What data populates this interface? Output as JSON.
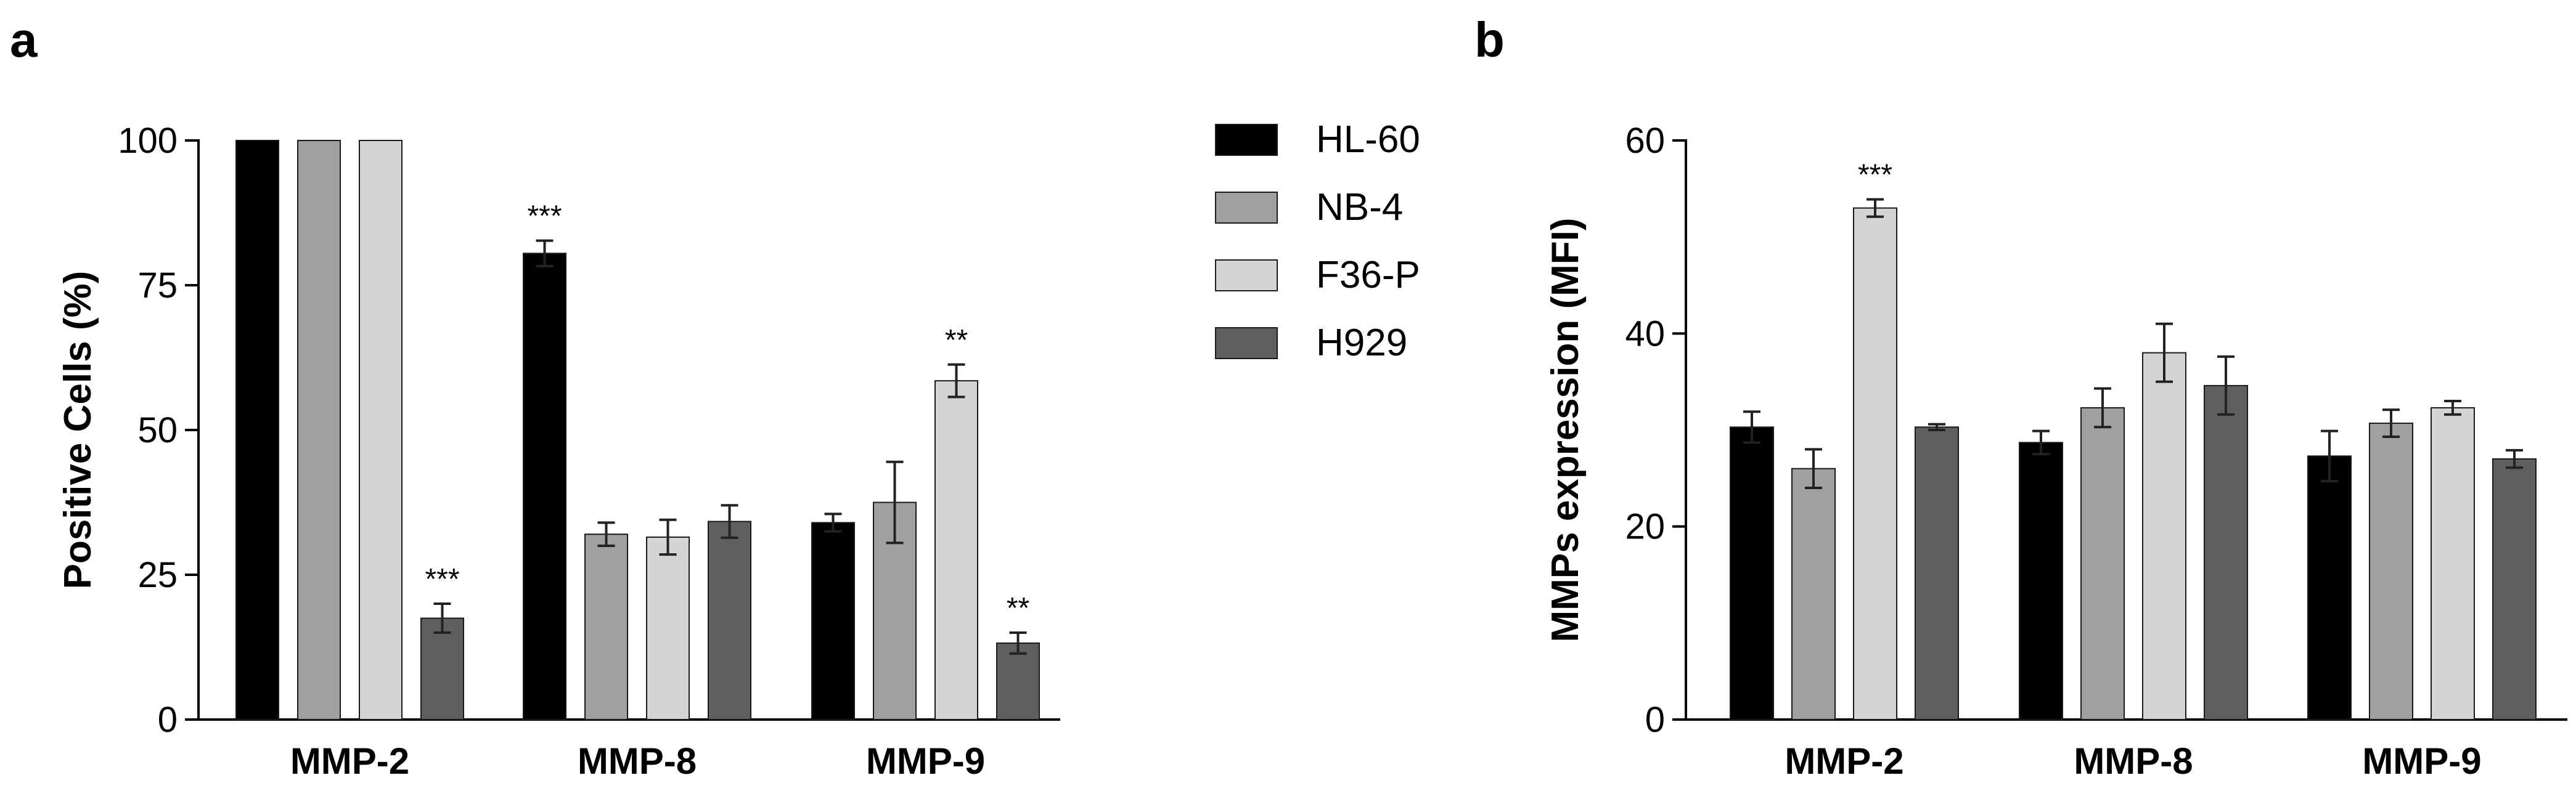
{
  "panels": {
    "a": "a",
    "b": "b"
  },
  "colors": {
    "HL-60": "#000000",
    "NB-4": "#a0a0a0",
    "F36-P": "#d4d4d4",
    "H929": "#5f5f5f"
  },
  "legend": [
    "HL-60",
    "NB-4",
    "F36-P",
    "H929"
  ],
  "chart_data": [
    {
      "type": "bar",
      "panel": "a",
      "categories": [
        "MMP-2",
        "MMP-8",
        "MMP-9"
      ],
      "ylabel": "Positive Cells (%)",
      "xlabel": "",
      "ylim": [
        0,
        100
      ],
      "yticks": [
        "0",
        "25",
        "50",
        "75",
        "100"
      ],
      "series": [
        {
          "name": "HL-60",
          "values": [
            100,
            80.5,
            34
          ],
          "errors": [
            0,
            2.2,
            1.5
          ],
          "sig": [
            "",
            "***",
            ""
          ]
        },
        {
          "name": "NB-4",
          "values": [
            100,
            32,
            37.5
          ],
          "errors": [
            0,
            2,
            7
          ],
          "sig": [
            "",
            "",
            ""
          ]
        },
        {
          "name": "F36-P",
          "values": [
            100,
            31.5,
            58.5
          ],
          "errors": [
            0,
            3,
            2.8
          ],
          "sig": [
            "",
            "",
            "**"
          ]
        },
        {
          "name": "H929",
          "values": [
            17.5,
            34.2,
            13.2
          ],
          "errors": [
            2.5,
            2.8,
            1.8
          ],
          "sig": [
            "***",
            "",
            "**"
          ]
        }
      ]
    },
    {
      "type": "bar",
      "panel": "b",
      "categories": [
        "MMP-2",
        "MMP-8",
        "MMP-9"
      ],
      "ylabel": "MMPs expression (MFI)",
      "xlabel": "",
      "ylim": [
        0,
        60
      ],
      "yticks": [
        "0",
        "20",
        "40",
        "60"
      ],
      "series": [
        {
          "name": "HL-60",
          "values": [
            30.3,
            28.7,
            27.3
          ],
          "errors": [
            1.6,
            1.2,
            2.6
          ],
          "sig": [
            "",
            "",
            ""
          ]
        },
        {
          "name": "NB-4",
          "values": [
            26,
            32.3,
            30.7
          ],
          "errors": [
            2,
            2,
            1.4
          ],
          "sig": [
            "",
            "",
            ""
          ]
        },
        {
          "name": "F36-P",
          "values": [
            53,
            38,
            32.3
          ],
          "errors": [
            0.9,
            3,
            0.7
          ],
          "sig": [
            "***",
            "",
            ""
          ]
        },
        {
          "name": "H929",
          "values": [
            30.3,
            34.6,
            27
          ],
          "errors": [
            0.3,
            3,
            0.9
          ],
          "sig": [
            "",
            "",
            ""
          ]
        }
      ]
    }
  ]
}
